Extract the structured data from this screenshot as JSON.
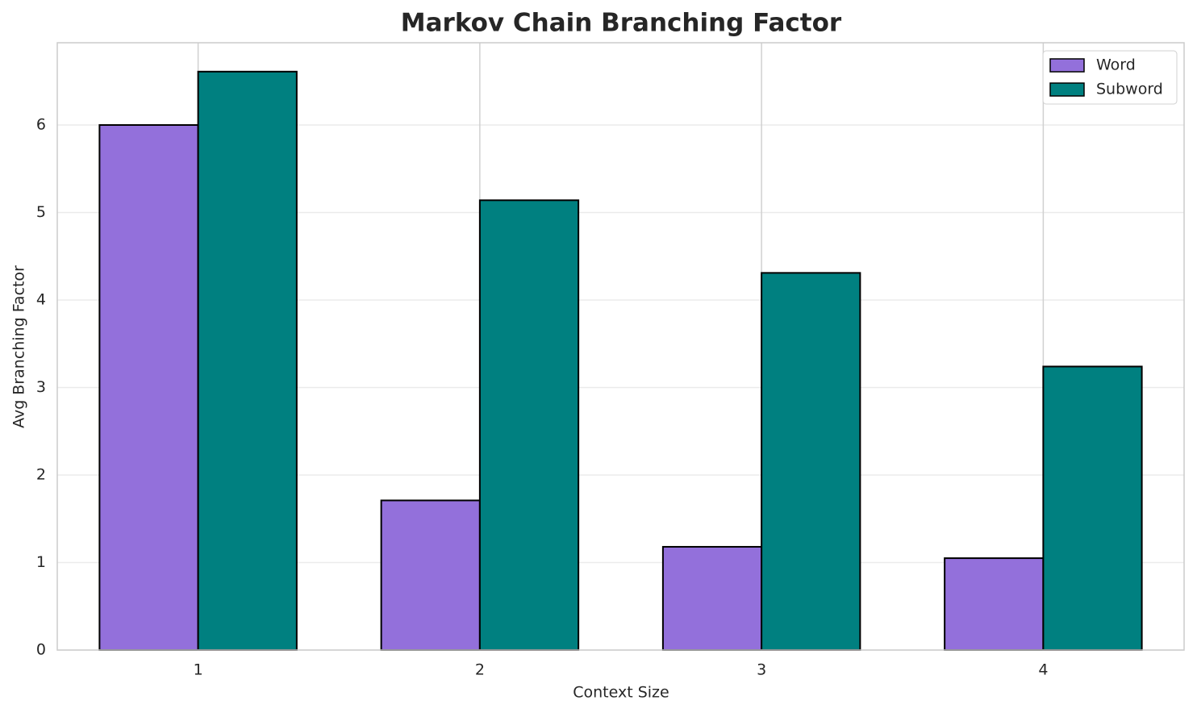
{
  "chart_data": {
    "type": "bar",
    "title": "Markov Chain Branching Factor",
    "x_label": "Context Size",
    "y_label": "Avg Branching Factor",
    "categories": [
      "1",
      "2",
      "3",
      "4"
    ],
    "series": [
      {
        "name": "Word",
        "color": "#9370db",
        "values": [
          6.0,
          1.71,
          1.18,
          1.05
        ]
      },
      {
        "name": "Subword",
        "color": "#008080",
        "values": [
          6.61,
          5.14,
          4.31,
          3.24
        ]
      }
    ],
    "ylim": [
      0,
      6.94
    ],
    "yticks": [
      0,
      1,
      2,
      3,
      4,
      5,
      6
    ],
    "grid": true,
    "legend": "upper right"
  }
}
